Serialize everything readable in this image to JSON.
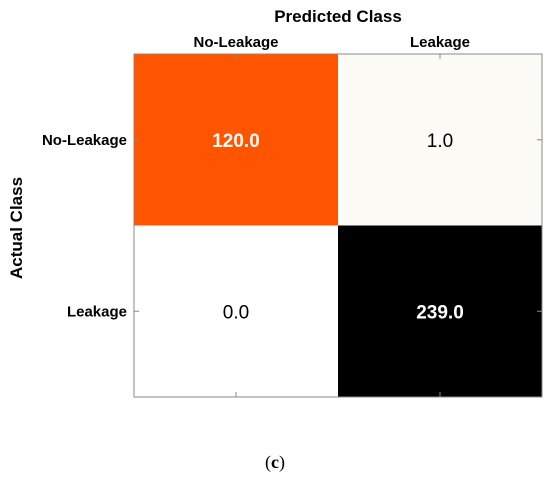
{
  "chart_data": {
    "type": "heatmap",
    "title": "Predicted Class",
    "xlabel": "Predicted Class",
    "ylabel": "Actual Class",
    "x_categories": [
      "No-Leakage",
      "Leakage"
    ],
    "y_categories": [
      "No-Leakage",
      "Leakage"
    ],
    "values": [
      [
        120.0,
        1.0
      ],
      [
        0.0,
        239.0
      ]
    ],
    "value_labels": [
      [
        "120.0",
        "1.0"
      ],
      [
        "0.0",
        "239.0"
      ]
    ],
    "cell_colors": [
      [
        "#ff5500",
        "#fdfbf5"
      ],
      [
        "#ffffff",
        "#000000"
      ]
    ],
    "text_colors": [
      [
        "#ffffff",
        "#000000"
      ],
      [
        "#000000",
        "#ffffff"
      ]
    ],
    "text_bold": [
      [
        true,
        false
      ],
      [
        false,
        true
      ]
    ],
    "colormap": "hot (reversed)"
  },
  "caption": {
    "open": "(",
    "letter": "c",
    "close": ")"
  }
}
